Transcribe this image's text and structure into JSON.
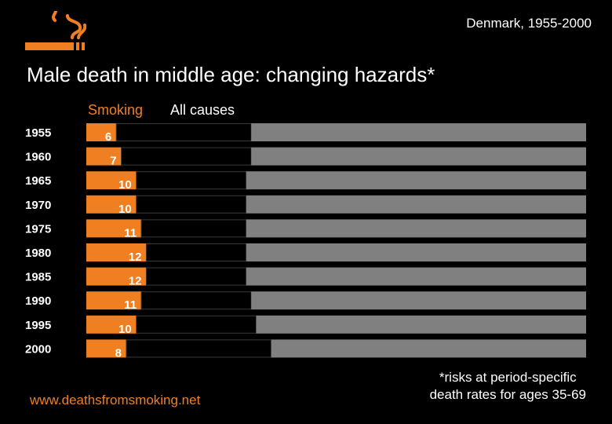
{
  "header": {
    "subtitle": "Denmark, 1955-2000",
    "title": "Male death in middle age: changing hazards*",
    "logo_icon": "cigarette-smoke-icon"
  },
  "legend": {
    "smoking": "Smoking",
    "all_causes": "All causes"
  },
  "colors": {
    "background": "#000000",
    "smoking": "#f07f22",
    "other_causes": "#808080",
    "gap": "#000000",
    "text": "#ffffff"
  },
  "footer": {
    "source": "www.deathsfromsmoking.net",
    "footnote_line1": "*risks at period-specific",
    "footnote_line2": "death rates for ages 35-69"
  },
  "chart_data": {
    "type": "bar",
    "orientation": "horizontal",
    "title": "Male death in middle age: changing hazards*",
    "subtitle": "Denmark, 1955-2000",
    "categories": [
      "1955",
      "1960",
      "1965",
      "1970",
      "1975",
      "1980",
      "1985",
      "1990",
      "1995",
      "2000"
    ],
    "series": [
      {
        "name": "Smoking",
        "values": [
          6,
          7,
          10,
          10,
          11,
          12,
          12,
          11,
          10,
          8
        ]
      },
      {
        "name": "All causes",
        "values": [
          33,
          33,
          32,
          32,
          32,
          32,
          32,
          33,
          34,
          37
        ]
      }
    ],
    "xlim": [
      0,
      100
    ],
    "unit": "% risk of death, ages 35-69"
  }
}
